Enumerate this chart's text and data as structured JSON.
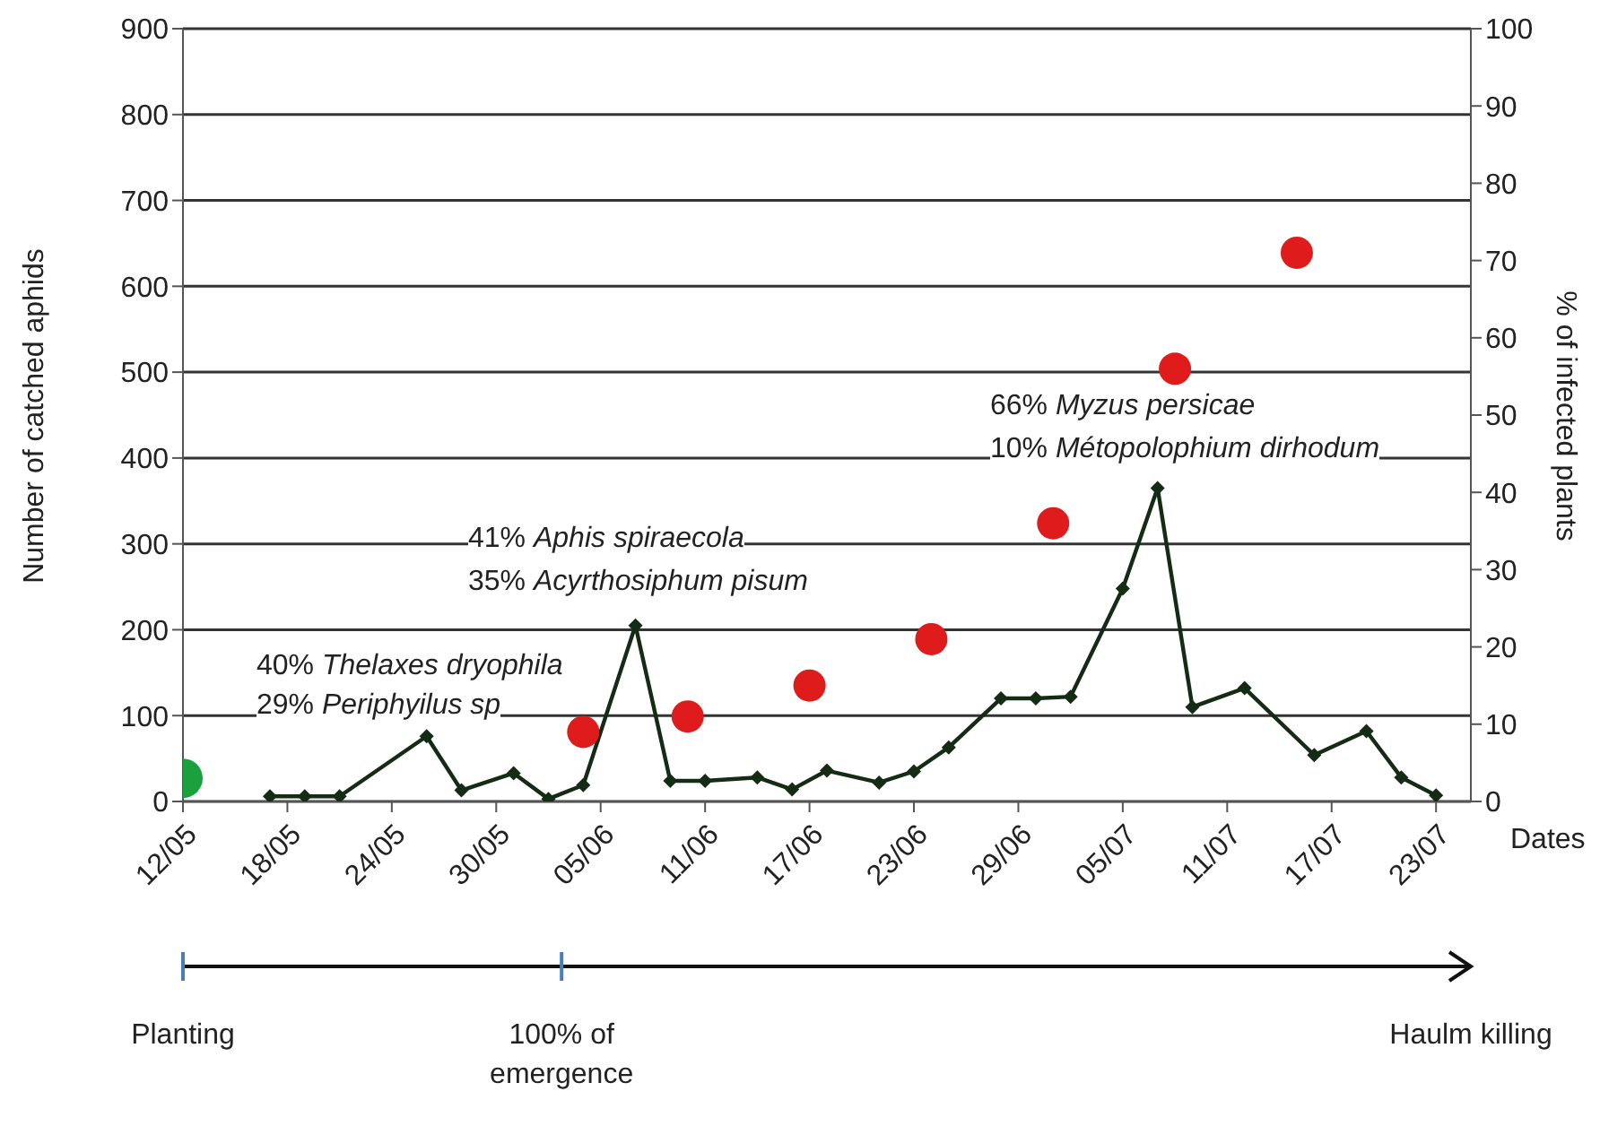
{
  "chart_data": {
    "type": "line",
    "xlabel": "Dates",
    "ylabel": "Number of catched aphids",
    "y2label": "% of infected plants",
    "xlim": [
      "--05-12",
      "--07-25"
    ],
    "xticks": [
      {
        "value": "--05-12",
        "label": "12/05"
      },
      {
        "value": "--05-18",
        "label": "18/05"
      },
      {
        "value": "--05-24",
        "label": "24/05"
      },
      {
        "value": "--05-30",
        "label": "30/05"
      },
      {
        "value": "--06-05",
        "label": "05/06"
      },
      {
        "value": "--06-11",
        "label": "11/06"
      },
      {
        "value": "--06-17",
        "label": "17/06"
      },
      {
        "value": "--06-23",
        "label": "23/06"
      },
      {
        "value": "--06-29",
        "label": "29/06"
      },
      {
        "value": "--07-05",
        "label": "05/07"
      },
      {
        "value": "--07-11",
        "label": "11/07"
      },
      {
        "value": "--07-17",
        "label": "17/07"
      },
      {
        "value": "--07-23",
        "label": "23/07"
      }
    ],
    "ylim": [
      0,
      900
    ],
    "yticks": [
      0,
      100,
      200,
      300,
      400,
      500,
      600,
      700,
      800,
      900
    ],
    "y2lim": [
      0,
      100
    ],
    "y2ticks": [
      0,
      10,
      20,
      30,
      40,
      50,
      60,
      70,
      80,
      90,
      100
    ],
    "grid": "y",
    "legend": false,
    "series": [
      {
        "color": "#142b14",
        "marker": "diamond",
        "line_style": "solid",
        "x": [
          "--05-17",
          "--05-19",
          "--05-21",
          "--05-26",
          "--05-28",
          "--05-31",
          "--06-02",
          "--06-04",
          "--06-07",
          "--06-09",
          "--06-11",
          "--06-14",
          "--06-16",
          "--06-18",
          "--06-21",
          "--06-23",
          "--06-25",
          "--06-28",
          "--06-30",
          "--07-02",
          "--07-05",
          "--07-07",
          "--07-09",
          "--07-12",
          "--07-16",
          "--07-19",
          "--07-21",
          "--07-23"
        ],
        "values": [
          6,
          6,
          6,
          76,
          13,
          33,
          3,
          19,
          205,
          24,
          24,
          28,
          14,
          36,
          22,
          35,
          63,
          120,
          120,
          122,
          248,
          365,
          110,
          132,
          54,
          82,
          28,
          7
        ]
      },
      {
        "type": "scatter",
        "color": "#e01b1b",
        "marker": "circle",
        "axis": "y2",
        "x": [
          "--06-04",
          "--06-10",
          "--06-17",
          "--06-24",
          "--07-01",
          "--07-08",
          "--07-15"
        ],
        "values": [
          9,
          11,
          15,
          21,
          36,
          56,
          71
        ]
      },
      {
        "type": "scatter",
        "color": "#1aa03c",
        "marker": "circle",
        "axis": "y2",
        "x": [
          "--05-12"
        ],
        "values": [
          3
        ]
      }
    ],
    "annotations": [
      "40% Thelaxes dryophila",
      "29% Periphyilus sp",
      "41% Aphis spiraecola",
      "35% Acyrthosiphum pisum",
      "66% Myzus persicae",
      "10% Métopolophium dirhodum",
      "Planting",
      "100% of emergence",
      "Haulm killing"
    ]
  }
}
